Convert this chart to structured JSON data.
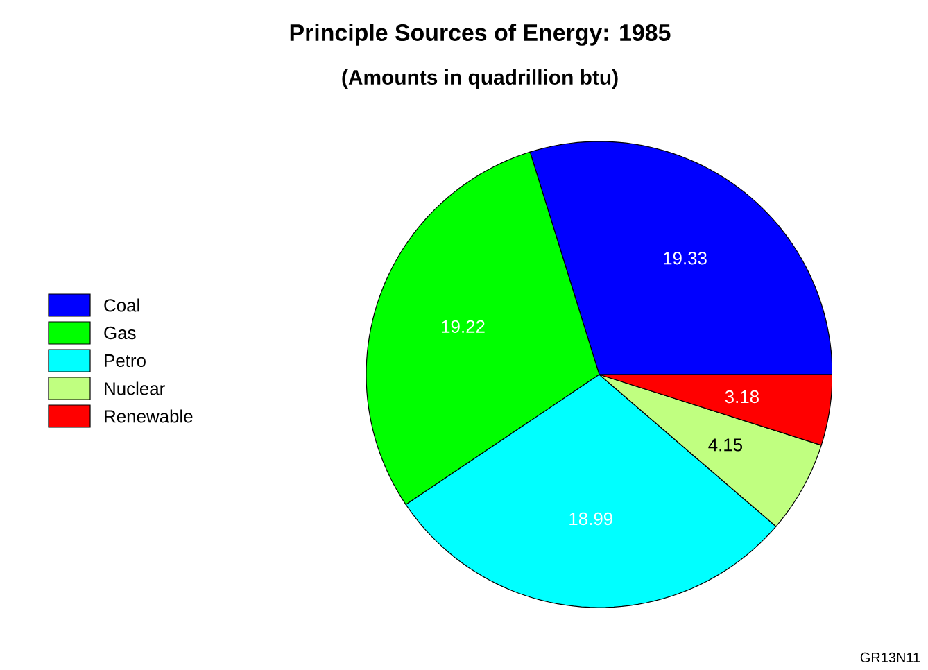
{
  "chart_data": {
    "type": "pie",
    "title": "Principle Sources of Energy: 1985",
    "subtitle": "(Amounts in quadrillion btu)",
    "categories": [
      "Coal",
      "Gas",
      "Petro",
      "Nuclear",
      "Renewable"
    ],
    "values": [
      19.33,
      19.22,
      18.99,
      4.15,
      3.18
    ],
    "colors": [
      "#0000ff",
      "#00ff00",
      "#00ffff",
      "#c0ff80",
      "#ff0000"
    ],
    "data_labels": true,
    "legend": "left",
    "annotations": [
      "GR13N11"
    ]
  }
}
